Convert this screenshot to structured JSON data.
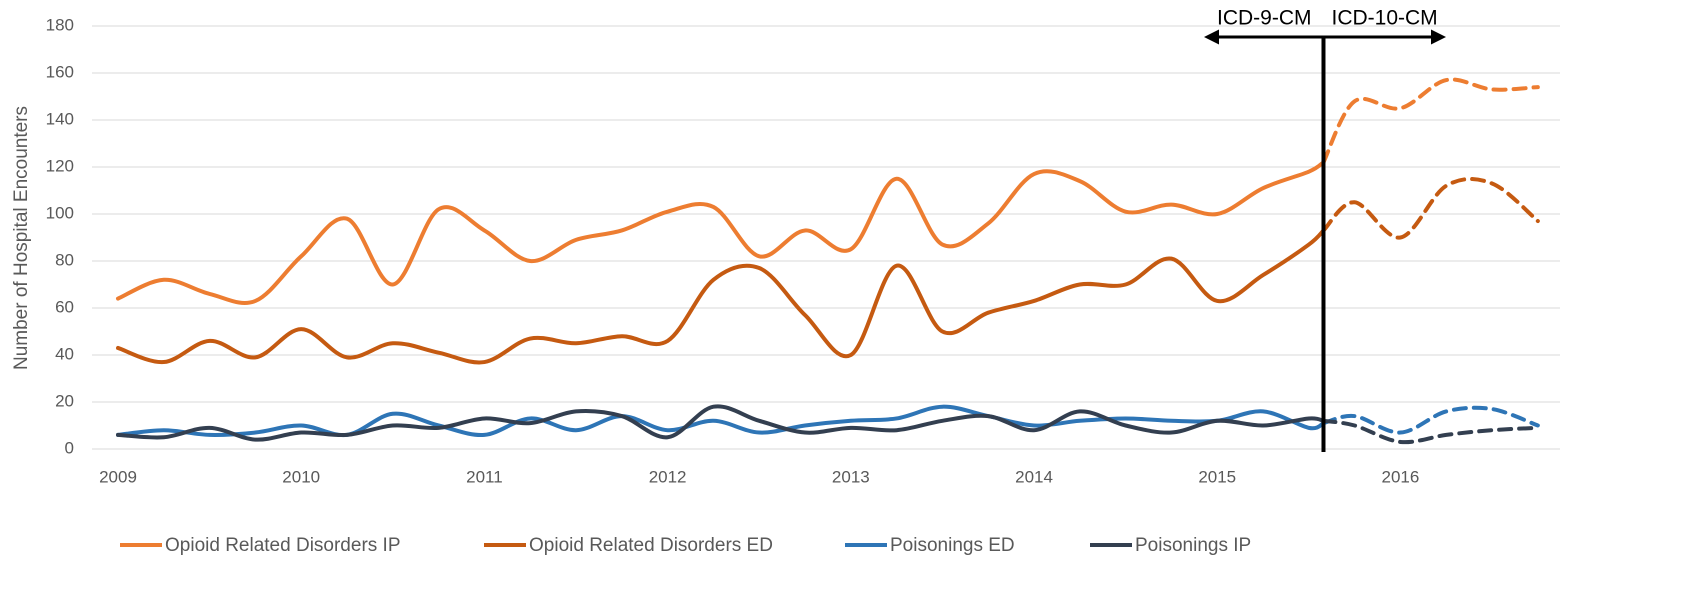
{
  "chart_data": {
    "type": "line",
    "y_label": "Number of Hospital Encounters",
    "x": [
      2009,
      2009.25,
      2009.5,
      2009.75,
      2010,
      2010.25,
      2010.5,
      2010.75,
      2011,
      2011.25,
      2011.5,
      2011.75,
      2012,
      2012.25,
      2012.5,
      2012.75,
      2013,
      2013.25,
      2013.5,
      2013.75,
      2014,
      2014.25,
      2014.5,
      2014.75,
      2015,
      2015.25,
      2015.5,
      2015.58,
      2015.75,
      2016,
      2016.25,
      2016.5,
      2016.75
    ],
    "series": [
      {
        "name": "Opioid Related Disorders IP",
        "color": "#ED7D31",
        "values": [
          64,
          72,
          66,
          63,
          82,
          98,
          70,
          102,
          93,
          80,
          89,
          93,
          101,
          103,
          82,
          93,
          85,
          115,
          87,
          96,
          117,
          114,
          101,
          104,
          100,
          111,
          118,
          122,
          148,
          145,
          157,
          153,
          154
        ]
      },
      {
        "name": "Opioid Related Disorders ED",
        "color": "#C55A11",
        "values": [
          43,
          37,
          46,
          39,
          51,
          39,
          45,
          41,
          37,
          47,
          45,
          48,
          46,
          72,
          77,
          57,
          40,
          78,
          50,
          58,
          63,
          70,
          70,
          81,
          63,
          74,
          87,
          93,
          105,
          90,
          112,
          113,
          97
        ]
      },
      {
        "name": "Poisonings ED",
        "color": "#2E75B6",
        "values": [
          6,
          8,
          6,
          7,
          10,
          6,
          15,
          10,
          6,
          13,
          8,
          14,
          8,
          12,
          7,
          10,
          12,
          13,
          18,
          14,
          10,
          12,
          13,
          12,
          12,
          16,
          9,
          11,
          14,
          7,
          16,
          17,
          10
        ]
      },
      {
        "name": "Poisonings IP",
        "color": "#333F50",
        "values": [
          6,
          5,
          9,
          4,
          7,
          6,
          10,
          9,
          13,
          11,
          16,
          14,
          5,
          18,
          12,
          7,
          9,
          8,
          12,
          14,
          8,
          16,
          10,
          7,
          12,
          10,
          13,
          12,
          10,
          3,
          6,
          8,
          9
        ]
      }
    ],
    "xlim": [
      2009,
      2016.8
    ],
    "xticks": [
      2009,
      2010,
      2011,
      2012,
      2013,
      2014,
      2015,
      2016
    ],
    "ylim": [
      0,
      180
    ],
    "yticks": [
      0,
      20,
      40,
      60,
      80,
      100,
      120,
      140,
      160,
      180
    ],
    "grid": true,
    "legend": "bottom",
    "divider": {
      "x": 2015.58,
      "left_label": "ICD-9-CM",
      "right_label": "ICD-10-CM"
    }
  }
}
